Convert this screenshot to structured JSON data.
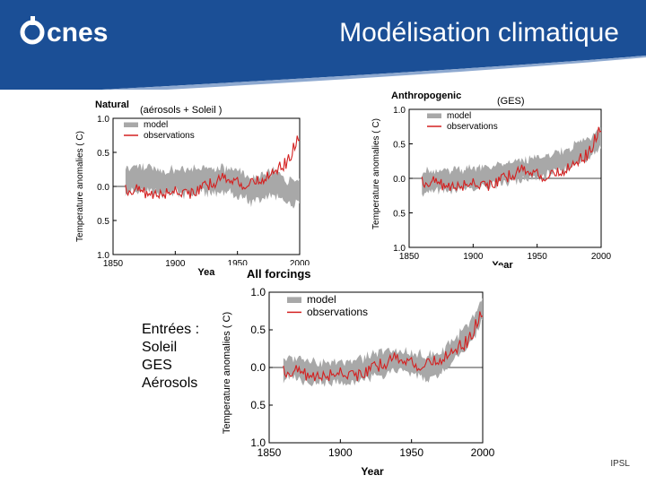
{
  "slide": {
    "title": "Modélisation climatique",
    "logo_text": "cnes",
    "footer": "IPSL",
    "inputs": {
      "heading": "Entrées :",
      "items": [
        "Soleil",
        "GES",
        "Aérosols"
      ]
    },
    "colors": {
      "header": "#1b4f96",
      "model": "#a8a8a8",
      "observations": "#d42020"
    }
  },
  "chart_data": [
    {
      "id": "natural",
      "type": "line",
      "title": "Natural",
      "annotation": "(aérosols + Soleil )",
      "xlabel": "Year",
      "ylabel": "Temperature anomalies ( C)",
      "xlim": [
        1850,
        2000
      ],
      "ylim": [
        -1.0,
        1.0
      ],
      "xticks": [
        "1850",
        "1900",
        "1950",
        "2000"
      ],
      "yticks": [
        "1.0",
        "0.5",
        "0.0",
        "0.5",
        "1.0"
      ],
      "legend": [
        "model",
        "observations"
      ],
      "x": [
        1860,
        1870,
        1880,
        1890,
        1900,
        1910,
        1920,
        1930,
        1940,
        1950,
        1960,
        1970,
        1980,
        1990,
        2000
      ],
      "series": [
        {
          "name": "model",
          "band": true,
          "values": [
            0.08,
            0.12,
            0.1,
            0.05,
            0.08,
            0.06,
            0.1,
            0.08,
            0.1,
            0.05,
            -0.05,
            -0.02,
            0.05,
            -0.08,
            -0.05
          ],
          "spread": 0.18
        },
        {
          "name": "observations",
          "values": [
            -0.05,
            -0.05,
            -0.12,
            -0.12,
            -0.05,
            -0.1,
            -0.05,
            0.05,
            0.15,
            0.05,
            0.02,
            0.1,
            0.25,
            0.35,
            0.75
          ]
        }
      ]
    },
    {
      "id": "anthropogenic",
      "type": "line",
      "title": "Anthropogenic",
      "annotation": "(GES)",
      "xlabel": "Year",
      "ylabel": "Temperature anomalies ( C)",
      "xlim": [
        1850,
        2000
      ],
      "ylim": [
        -1.0,
        1.0
      ],
      "xticks": [
        "1850",
        "1900",
        "1950",
        "2000"
      ],
      "yticks": [
        "1.0",
        "0.5",
        "0.0",
        "0.5",
        "1.0"
      ],
      "legend": [
        "model",
        "observations"
      ],
      "x": [
        1860,
        1870,
        1880,
        1890,
        1900,
        1910,
        1920,
        1930,
        1940,
        1950,
        1960,
        1970,
        1980,
        1990,
        2000
      ],
      "series": [
        {
          "name": "model",
          "band": true,
          "values": [
            -0.05,
            -0.05,
            -0.03,
            0.0,
            0.0,
            0.02,
            0.05,
            0.08,
            0.12,
            0.15,
            0.2,
            0.25,
            0.35,
            0.45,
            0.6
          ],
          "spread": 0.15
        },
        {
          "name": "observations",
          "values": [
            -0.05,
            -0.05,
            -0.12,
            -0.12,
            -0.05,
            -0.1,
            -0.05,
            0.05,
            0.15,
            0.05,
            0.02,
            0.1,
            0.25,
            0.35,
            0.75
          ]
        }
      ]
    },
    {
      "id": "all-forcings",
      "type": "line",
      "title": "All forcings",
      "xlabel": "Year",
      "ylabel": "Temperature anomalies ( C)",
      "xlim": [
        1850,
        2000
      ],
      "ylim": [
        -1.0,
        1.0
      ],
      "xticks": [
        "1850",
        "1900",
        "1950",
        "2000"
      ],
      "yticks": [
        "1.0",
        "0.5",
        "0.0",
        "0.5",
        "1.0"
      ],
      "legend": [
        "model",
        "observations"
      ],
      "x": [
        1860,
        1870,
        1880,
        1890,
        1900,
        1910,
        1920,
        1930,
        1940,
        1950,
        1960,
        1970,
        1980,
        1990,
        2000
      ],
      "series": [
        {
          "name": "model",
          "band": true,
          "values": [
            -0.02,
            0.0,
            -0.05,
            -0.08,
            -0.05,
            -0.05,
            0.0,
            0.05,
            0.1,
            0.05,
            0.0,
            0.05,
            0.25,
            0.4,
            0.75
          ],
          "spread": 0.15
        },
        {
          "name": "observations",
          "values": [
            -0.05,
            -0.05,
            -0.12,
            -0.12,
            -0.05,
            -0.1,
            -0.05,
            0.05,
            0.15,
            0.05,
            0.02,
            0.1,
            0.25,
            0.35,
            0.75
          ]
        }
      ]
    }
  ]
}
